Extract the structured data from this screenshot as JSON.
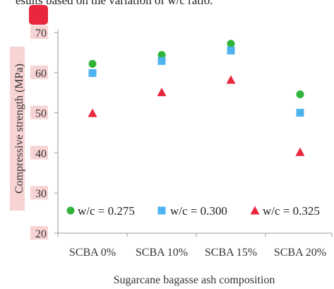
{
  "caption_fragment": "esults based on the variation of w/c ratio.",
  "chart_data": {
    "type": "scatter",
    "categories": [
      "SCBA 0%",
      "SCBA 10%",
      "SCBA 15%",
      "SCBA 20%"
    ],
    "series": [
      {
        "name": "w/c = 0.275",
        "marker": "circle",
        "color": "#2fb339",
        "values": [
          62.2,
          64.4,
          67.2,
          54.6
        ]
      },
      {
        "name": "w/c = 0.300",
        "marker": "square",
        "color": "#4fb3f0",
        "values": [
          59.9,
          62.9,
          65.5,
          50.0
        ]
      },
      {
        "name": "w/c = 0.325",
        "marker": "triangle",
        "color": "#e8273d",
        "values": [
          49.9,
          55.1,
          58.2,
          40.2
        ]
      }
    ],
    "xlabel": "Sugarcane bagasse ash composition",
    "ylabel": "Compressive strength (MPa)",
    "ylim": [
      20,
      70
    ],
    "yticks": [
      20,
      30,
      40,
      50,
      60,
      70
    ],
    "grid": false,
    "legend_position": "bottom"
  },
  "colors": {
    "label_highlight": "#f8d3d3",
    "axis": "#999999"
  }
}
